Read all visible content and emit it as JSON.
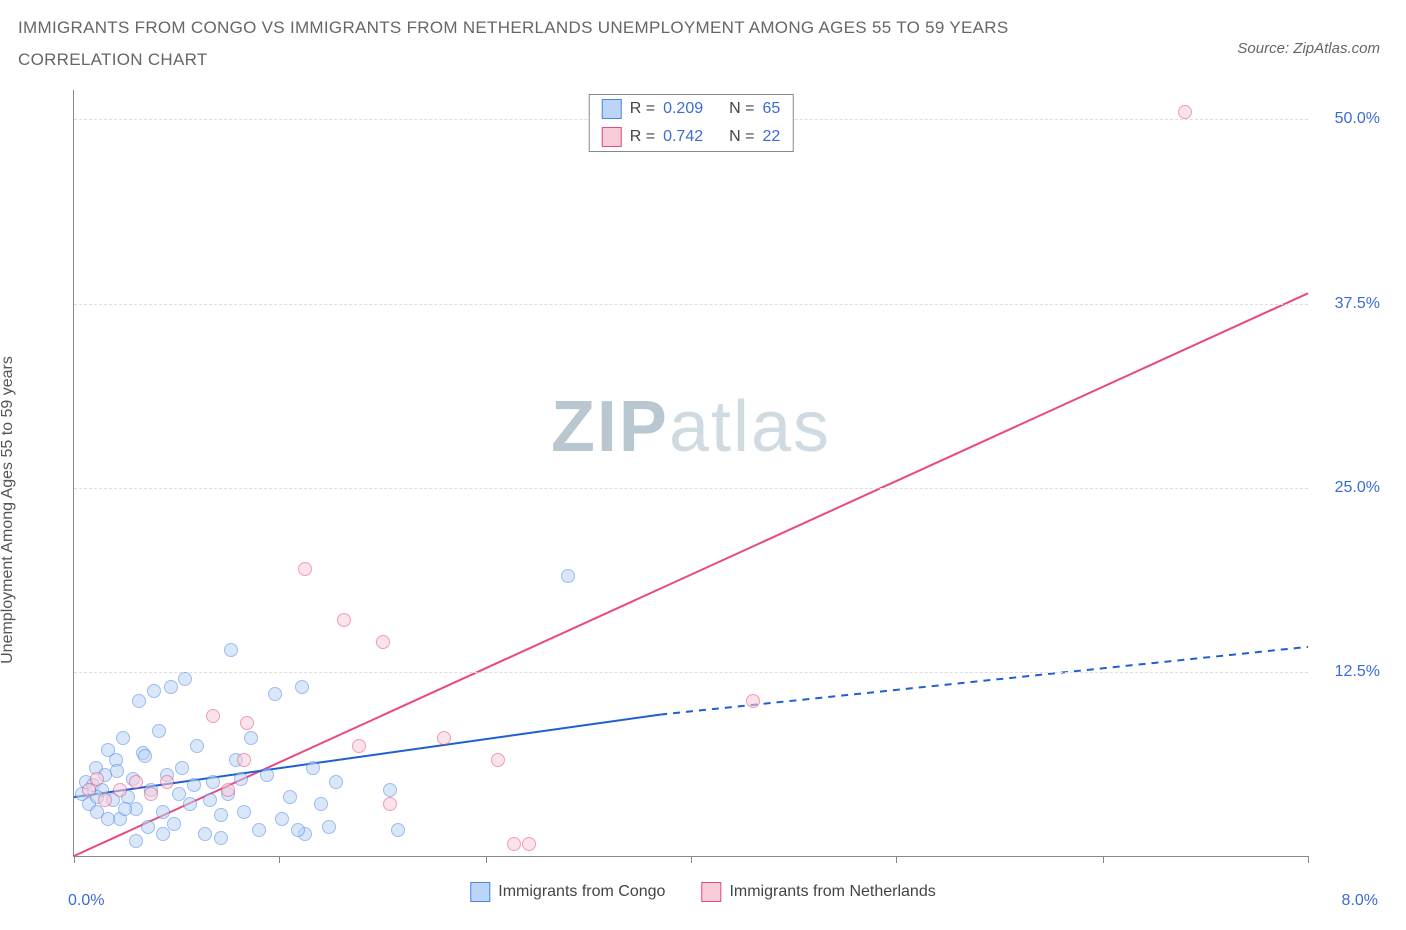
{
  "title_line1": "IMMIGRANTS FROM CONGO VS IMMIGRANTS FROM NETHERLANDS UNEMPLOYMENT AMONG AGES 55 TO 59 YEARS",
  "title_line2": "CORRELATION CHART",
  "source_prefix": "Source: ",
  "source_name": "ZipAtlas.com",
  "y_axis_label": "Unemployment Among Ages 55 to 59 years",
  "watermark_bold": "ZIP",
  "watermark_rest": "atlas",
  "chart": {
    "type": "scatter",
    "background_color": "#ffffff",
    "grid_color": "#dddddd",
    "axis_color": "#888888",
    "text_color_blue": "#3b6bd6",
    "xlim": [
      0,
      8.0
    ],
    "ylim": [
      0,
      52
    ],
    "x_ticks": [
      0,
      1.33,
      2.67,
      4.0,
      5.33,
      6.67,
      8.0
    ],
    "x_tick_labels": {
      "origin": "0.0%",
      "max": "8.0%"
    },
    "y_ticks": [
      12.5,
      25.0,
      37.5,
      50.0
    ],
    "y_tick_labels": [
      "12.5%",
      "25.0%",
      "37.5%",
      "50.0%"
    ],
    "point_radius": 7,
    "point_opacity": 0.55,
    "series": [
      {
        "name": "Immigrants from Congo",
        "color_fill": "#bcd4f5",
        "color_stroke": "#4a86e8",
        "R": "0.209",
        "N": "65",
        "trend": {
          "x1": 0,
          "y1": 4.0,
          "x2": 3.8,
          "y2": 9.6,
          "dash_x2": 8.0,
          "dash_y2": 14.2,
          "color": "#1f5fd0",
          "width": 2
        },
        "points": [
          [
            0.05,
            4.2
          ],
          [
            0.08,
            5.0
          ],
          [
            0.1,
            3.5
          ],
          [
            0.12,
            4.8
          ],
          [
            0.14,
            6.0
          ],
          [
            0.15,
            3.0
          ],
          [
            0.18,
            4.5
          ],
          [
            0.2,
            5.5
          ],
          [
            0.22,
            7.2
          ],
          [
            0.25,
            3.8
          ],
          [
            0.27,
            6.5
          ],
          [
            0.3,
            2.5
          ],
          [
            0.32,
            8.0
          ],
          [
            0.35,
            4.0
          ],
          [
            0.38,
            5.2
          ],
          [
            0.4,
            3.2
          ],
          [
            0.42,
            10.5
          ],
          [
            0.45,
            7.0
          ],
          [
            0.48,
            2.0
          ],
          [
            0.5,
            4.5
          ],
          [
            0.52,
            11.2
          ],
          [
            0.55,
            8.5
          ],
          [
            0.58,
            3.0
          ],
          [
            0.6,
            5.5
          ],
          [
            0.63,
            11.5
          ],
          [
            0.65,
            2.2
          ],
          [
            0.7,
            6.0
          ],
          [
            0.72,
            12.0
          ],
          [
            0.75,
            3.5
          ],
          [
            0.78,
            4.8
          ],
          [
            0.8,
            7.5
          ],
          [
            0.85,
            1.5
          ],
          [
            0.9,
            5.0
          ],
          [
            0.95,
            2.8
          ],
          [
            1.0,
            4.2
          ],
          [
            1.02,
            14.0
          ],
          [
            1.05,
            6.5
          ],
          [
            1.1,
            3.0
          ],
          [
            1.15,
            8.0
          ],
          [
            1.2,
            1.8
          ],
          [
            1.25,
            5.5
          ],
          [
            1.3,
            11.0
          ],
          [
            1.35,
            2.5
          ],
          [
            1.4,
            4.0
          ],
          [
            1.48,
            11.5
          ],
          [
            1.5,
            1.5
          ],
          [
            1.55,
            6.0
          ],
          [
            1.6,
            3.5
          ],
          [
            1.65,
            2.0
          ],
          [
            1.7,
            5.0
          ],
          [
            2.05,
            4.5
          ],
          [
            2.1,
            1.8
          ],
          [
            3.2,
            19.0
          ],
          [
            0.15,
            4.0
          ],
          [
            0.28,
            5.8
          ],
          [
            0.33,
            3.2
          ],
          [
            0.46,
            6.8
          ],
          [
            0.68,
            4.2
          ],
          [
            0.88,
            3.8
          ],
          [
            1.08,
            5.2
          ],
          [
            0.58,
            1.5
          ],
          [
            0.4,
            1.0
          ],
          [
            0.95,
            1.2
          ],
          [
            1.45,
            1.8
          ],
          [
            0.22,
            2.5
          ]
        ]
      },
      {
        "name": "Immigrants from Netherlands",
        "color_fill": "#f7cdd9",
        "color_stroke": "#e84a7a",
        "R": "0.742",
        "N": "22",
        "trend": {
          "x1": 0,
          "y1": 0.0,
          "x2": 8.0,
          "y2": 38.2,
          "color": "#e84a7a",
          "width": 2
        },
        "points": [
          [
            0.1,
            4.5
          ],
          [
            0.15,
            5.2
          ],
          [
            0.2,
            3.8
          ],
          [
            0.3,
            4.5
          ],
          [
            0.4,
            5.0
          ],
          [
            0.5,
            4.2
          ],
          [
            0.6,
            5.0
          ],
          [
            0.9,
            9.5
          ],
          [
            1.0,
            4.5
          ],
          [
            1.1,
            6.5
          ],
          [
            1.12,
            9.0
          ],
          [
            1.5,
            19.5
          ],
          [
            1.75,
            16.0
          ],
          [
            1.85,
            7.5
          ],
          [
            2.0,
            14.5
          ],
          [
            2.05,
            3.5
          ],
          [
            2.4,
            8.0
          ],
          [
            2.75,
            6.5
          ],
          [
            2.85,
            0.8
          ],
          [
            2.95,
            0.8
          ],
          [
            4.4,
            10.5
          ],
          [
            7.2,
            50.5
          ]
        ]
      }
    ]
  },
  "legend_top": {
    "r_label": "R =",
    "n_label": "N ="
  },
  "legend_bottom": {
    "series1": "Immigrants from Congo",
    "series2": "Immigrants from Netherlands"
  }
}
